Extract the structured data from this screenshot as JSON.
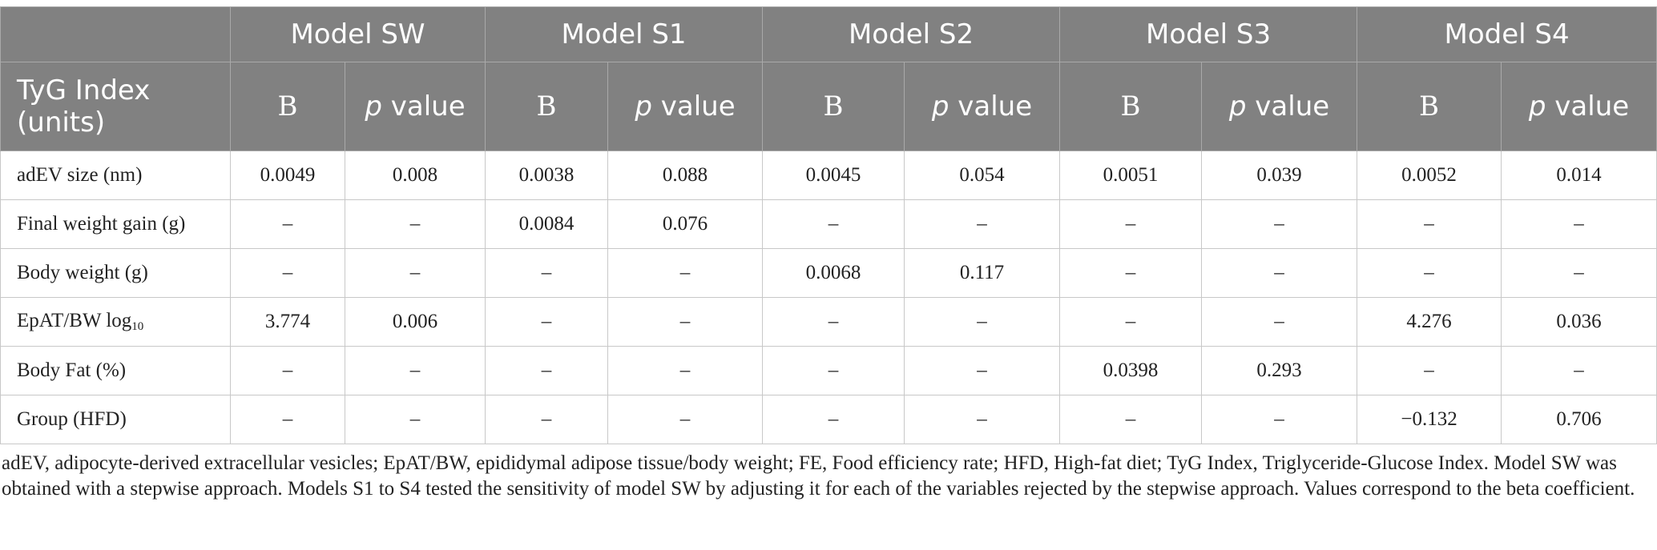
{
  "table": {
    "models": [
      "Model SW",
      "Model S1",
      "Model S2",
      "Model S3",
      "Model S4"
    ],
    "row_header": "TyG Index (units)",
    "sub_headers": {
      "b": "B",
      "p_italic": "p",
      "p_rest": " value"
    },
    "rows": [
      {
        "label": "adEV size (nm)",
        "values": [
          "0.0049",
          "0.008",
          "0.0038",
          "0.088",
          "0.0045",
          "0.054",
          "0.0051",
          "0.039",
          "0.0052",
          "0.014"
        ]
      },
      {
        "label": "Final weight gain (g)",
        "values": [
          "–",
          "–",
          "0.0084",
          "0.076",
          "–",
          "–",
          "–",
          "–",
          "–",
          "–"
        ]
      },
      {
        "label": "Body weight (g)",
        "values": [
          "–",
          "–",
          "–",
          "–",
          "0.0068",
          "0.117",
          "–",
          "–",
          "–",
          "–"
        ]
      },
      {
        "label": "EpAT/BW log",
        "label_sub": "10",
        "values": [
          "3.774",
          "0.006",
          "–",
          "–",
          "–",
          "–",
          "–",
          "–",
          "4.276",
          "0.036"
        ]
      },
      {
        "label": "Body Fat (%)",
        "values": [
          "–",
          "–",
          "–",
          "–",
          "–",
          "–",
          "0.0398",
          "0.293",
          "–",
          "–"
        ]
      },
      {
        "label": "Group (HFD)",
        "values": [
          "–",
          "–",
          "–",
          "–",
          "–",
          "–",
          "–",
          "–",
          "−0.132",
          "0.706"
        ]
      }
    ]
  },
  "footnote": "adEV, adipocyte-derived extracellular vesicles; EpAT/BW, epididymal adipose tissue/body weight; FE, Food efficiency rate; HFD, High-fat diet; TyG Index, Triglyceride-Glucose Index. Model SW was obtained with a stepwise approach. Models S1 to S4 tested the sensitivity of model SW by adjusting it for each of the variables rejected by the stepwise approach. Values correspond to the beta coefficient."
}
